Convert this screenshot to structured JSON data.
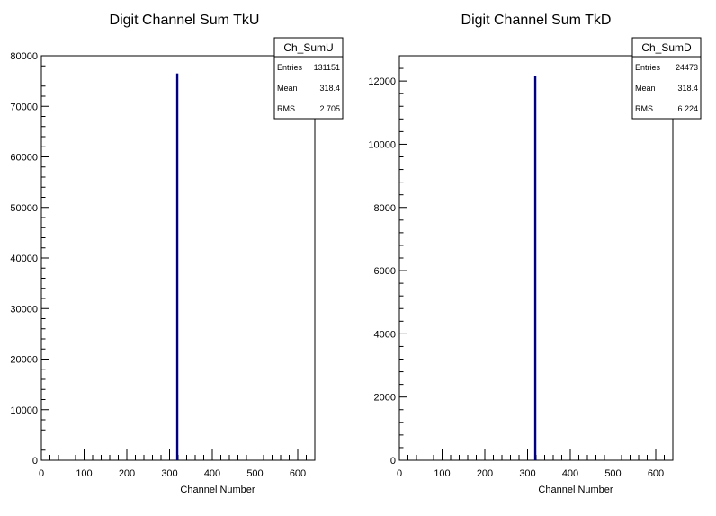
{
  "chart_data": [
    {
      "type": "bar",
      "title": "Digit Channel Sum TkU",
      "xlabel": "Channel Number",
      "ylabel": "",
      "xlim": [
        0,
        640
      ],
      "ylim": [
        0,
        80000
      ],
      "xticks": [
        0,
        100,
        200,
        300,
        400,
        500,
        600
      ],
      "yticks": [
        0,
        10000,
        20000,
        30000,
        40000,
        50000,
        60000,
        70000,
        80000
      ],
      "x": [
        318
      ],
      "values": [
        76500
      ],
      "bar_color": "#000080",
      "stats": {
        "name": "Ch_SumU",
        "rows": [
          {
            "label": "Entries",
            "value": "131151"
          },
          {
            "label": "Mean",
            "value": "318.4"
          },
          {
            "label": "RMS",
            "value": "2.705"
          }
        ]
      }
    },
    {
      "type": "bar",
      "title": "Digit Channel Sum TkD",
      "xlabel": "Channel Number",
      "ylabel": "",
      "xlim": [
        0,
        640
      ],
      "ylim": [
        0,
        12800
      ],
      "xticks": [
        0,
        100,
        200,
        300,
        400,
        500,
        600
      ],
      "yticks": [
        0,
        2000,
        4000,
        6000,
        8000,
        10000,
        12000
      ],
      "x": [
        318
      ],
      "values": [
        12150
      ],
      "bar_color": "#000080",
      "stats": {
        "name": "Ch_SumD",
        "rows": [
          {
            "label": "Entries",
            "value": "24473"
          },
          {
            "label": "Mean",
            "value": "318.4"
          },
          {
            "label": "RMS",
            "value": "6.224"
          }
        ]
      }
    }
  ]
}
